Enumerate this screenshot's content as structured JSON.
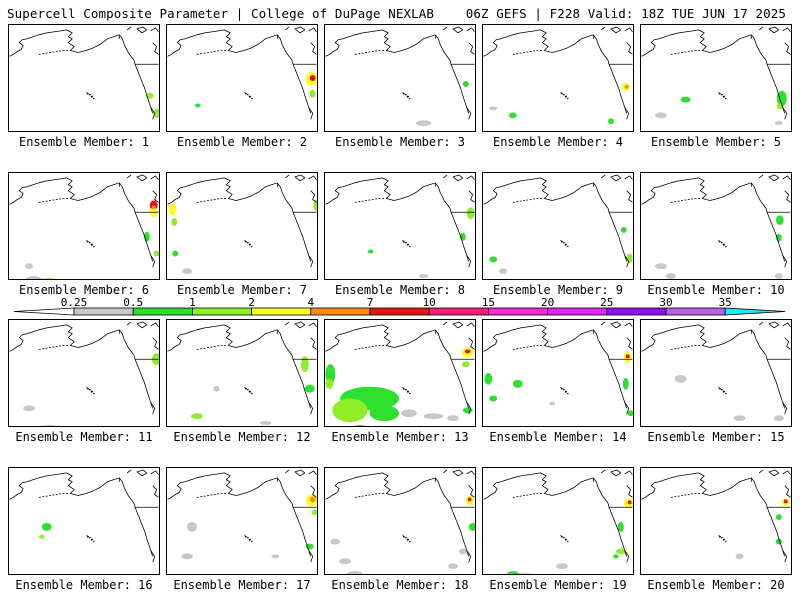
{
  "header": {
    "left": "Supercell Composite Parameter | College of DuPage NEXLAB",
    "right": "06Z GEFS | F228 Valid: 18Z TUE JUN 17 2025"
  },
  "colorbar": {
    "ticks": [
      "0.25",
      "0.5",
      "1",
      "2",
      "4",
      "7",
      "10",
      "15",
      "20",
      "25",
      "30",
      "35"
    ],
    "colors": [
      "#c8c8c8",
      "#2ee02e",
      "#90ee28",
      "#ffff28",
      "#ff8c14",
      "#e61414",
      "#ff1e78",
      "#ff28d2",
      "#dc28f0",
      "#8c14f0",
      "#b464e6",
      "#28e6f0"
    ]
  },
  "members": [
    {
      "label": "Ensemble Member: 1",
      "blobs": [
        [
          143,
          72,
          4,
          3,
          2
        ],
        [
          150,
          90,
          3,
          5,
          2
        ]
      ]
    },
    {
      "label": "Ensemble Member: 2",
      "blobs": [
        [
          147,
          55,
          6,
          7,
          3
        ],
        [
          148,
          54,
          3,
          3,
          5
        ],
        [
          31,
          82,
          3,
          2,
          1
        ],
        [
          148,
          70,
          3,
          4,
          2
        ]
      ]
    },
    {
      "label": "Ensemble Member: 3",
      "blobs": [
        [
          100,
          100,
          8,
          3,
          0
        ],
        [
          143,
          60,
          3,
          3,
          1
        ]
      ]
    },
    {
      "label": "Ensemble Member: 4",
      "blobs": [
        [
          145,
          63,
          4,
          4,
          3
        ],
        [
          146,
          63,
          2,
          2,
          4
        ],
        [
          30,
          92,
          4,
          3,
          1
        ],
        [
          10,
          85,
          4,
          2,
          0
        ],
        [
          130,
          98,
          3,
          3,
          1
        ]
      ]
    },
    {
      "label": "Ensemble Member: 5",
      "blobs": [
        [
          143,
          75,
          5,
          8,
          1
        ],
        [
          141,
          83,
          3,
          3,
          2
        ],
        [
          45,
          76,
          5,
          3,
          1
        ],
        [
          20,
          92,
          6,
          3,
          0
        ],
        [
          140,
          100,
          4,
          2,
          0
        ]
      ]
    },
    {
      "label": "Ensemble Member: 6",
      "blobs": [
        [
          147,
          33,
          4,
          5,
          5
        ],
        [
          147,
          40,
          4,
          5,
          3
        ],
        [
          147,
          35,
          2,
          2,
          4
        ],
        [
          140,
          65,
          3,
          5,
          1
        ],
        [
          150,
          82,
          3,
          3,
          2
        ],
        [
          40,
          110,
          10,
          3,
          2
        ],
        [
          25,
          108,
          8,
          3,
          0
        ],
        [
          20,
          95,
          4,
          3,
          0
        ]
      ]
    },
    {
      "label": "Ensemble Member: 7",
      "blobs": [
        [
          5,
          37,
          4,
          6,
          3
        ],
        [
          7,
          50,
          3,
          4,
          2
        ],
        [
          8,
          82,
          3,
          3,
          1
        ],
        [
          152,
          33,
          3,
          6,
          2
        ],
        [
          20,
          100,
          5,
          3,
          0
        ]
      ]
    },
    {
      "label": "Ensemble Member: 8",
      "blobs": [
        [
          148,
          41,
          4,
          6,
          2
        ],
        [
          140,
          65,
          3,
          4,
          1
        ],
        [
          46,
          80,
          3,
          2,
          1
        ],
        [
          100,
          105,
          5,
          2,
          0
        ]
      ]
    },
    {
      "label": "Ensemble Member: 9",
      "blobs": [
        [
          143,
          58,
          3,
          3,
          1
        ],
        [
          149,
          87,
          3,
          5,
          2
        ],
        [
          10,
          88,
          4,
          3,
          1
        ],
        [
          20,
          100,
          4,
          3,
          0
        ]
      ]
    },
    {
      "label": "Ensemble Member: 10",
      "blobs": [
        [
          141,
          48,
          4,
          5,
          1
        ],
        [
          140,
          66,
          3,
          4,
          1
        ],
        [
          20,
          95,
          6,
          3,
          0
        ],
        [
          30,
          105,
          5,
          3,
          0
        ],
        [
          140,
          105,
          4,
          3,
          0
        ]
      ]
    },
    {
      "label": "Ensemble Member: 11",
      "blobs": [
        [
          150,
          40,
          5,
          6,
          2
        ],
        [
          20,
          90,
          6,
          3,
          0
        ],
        [
          40,
          110,
          10,
          3,
          0
        ]
      ]
    },
    {
      "label": "Ensemble Member: 12",
      "blobs": [
        [
          140,
          45,
          4,
          8,
          2
        ],
        [
          145,
          70,
          5,
          4,
          1
        ],
        [
          30,
          98,
          6,
          3,
          2
        ],
        [
          50,
          70,
          3,
          3,
          0
        ],
        [
          100,
          105,
          6,
          2,
          0
        ]
      ]
    },
    {
      "label": "Ensemble Member: 13",
      "blobs": [
        [
          145,
          33,
          6,
          5,
          3
        ],
        [
          145,
          32,
          3,
          2,
          5
        ],
        [
          143,
          45,
          4,
          3,
          2
        ],
        [
          5,
          55,
          5,
          10,
          1
        ],
        [
          4,
          65,
          4,
          5,
          2
        ],
        [
          45,
          80,
          30,
          12,
          1
        ],
        [
          25,
          92,
          18,
          12,
          2
        ],
        [
          60,
          95,
          15,
          8,
          1
        ],
        [
          85,
          95,
          8,
          4,
          0
        ],
        [
          110,
          98,
          10,
          3,
          0
        ],
        [
          145,
          92,
          5,
          3,
          1
        ],
        [
          130,
          100,
          6,
          3,
          0
        ],
        [
          35,
          110,
          8,
          3,
          1
        ]
      ]
    },
    {
      "label": "Ensemble Member: 14",
      "blobs": [
        [
          147,
          38,
          4,
          6,
          3
        ],
        [
          147,
          37,
          2,
          2,
          5
        ],
        [
          145,
          65,
          3,
          6,
          1
        ],
        [
          5,
          60,
          4,
          6,
          1
        ],
        [
          35,
          65,
          5,
          4,
          1
        ],
        [
          10,
          80,
          4,
          3,
          1
        ],
        [
          150,
          95,
          3,
          3,
          1
        ],
        [
          70,
          85,
          3,
          2,
          0
        ]
      ]
    },
    {
      "label": "Ensemble Member: 15",
      "blobs": [
        [
          40,
          60,
          6,
          4,
          0
        ],
        [
          100,
          100,
          6,
          3,
          0
        ],
        [
          140,
          100,
          5,
          3,
          0
        ]
      ]
    },
    {
      "label": "Ensemble Member: 16",
      "blobs": [
        [
          38,
          60,
          5,
          4,
          1
        ],
        [
          33,
          70,
          3,
          2,
          2
        ]
      ]
    },
    {
      "label": "Ensemble Member: 17",
      "blobs": [
        [
          147,
          33,
          6,
          6,
          3
        ],
        [
          148,
          32,
          3,
          3,
          4
        ],
        [
          150,
          45,
          3,
          3,
          2
        ],
        [
          25,
          60,
          5,
          5,
          0
        ],
        [
          20,
          90,
          6,
          3,
          0
        ],
        [
          145,
          80,
          4,
          3,
          1
        ],
        [
          110,
          90,
          4,
          2,
          0
        ]
      ]
    },
    {
      "label": "Ensemble Member: 18",
      "blobs": [
        [
          147,
          33,
          4,
          5,
          3
        ],
        [
          147,
          32,
          2,
          2,
          5
        ],
        [
          150,
          60,
          4,
          4,
          1
        ],
        [
          10,
          75,
          5,
          3,
          0
        ],
        [
          20,
          95,
          6,
          3,
          0
        ],
        [
          30,
          108,
          8,
          3,
          0
        ],
        [
          140,
          85,
          4,
          3,
          0
        ],
        [
          130,
          100,
          5,
          3,
          0
        ]
      ]
    },
    {
      "label": "Ensemble Member: 19",
      "blobs": [
        [
          148,
          36,
          5,
          5,
          3
        ],
        [
          149,
          35,
          2,
          2,
          5
        ],
        [
          140,
          60,
          3,
          5,
          1
        ],
        [
          140,
          85,
          5,
          3,
          2
        ],
        [
          135,
          90,
          3,
          2,
          1
        ],
        [
          40,
          110,
          12,
          3,
          0
        ],
        [
          30,
          108,
          6,
          3,
          1
        ],
        [
          80,
          100,
          6,
          3,
          0
        ]
      ]
    },
    {
      "label": "Ensemble Member: 20",
      "blobs": [
        [
          147,
          35,
          4,
          4,
          3
        ],
        [
          147,
          34,
          2,
          2,
          5
        ],
        [
          140,
          50,
          3,
          3,
          1
        ],
        [
          140,
          75,
          3,
          3,
          1
        ],
        [
          100,
          90,
          4,
          3,
          0
        ]
      ]
    }
  ]
}
